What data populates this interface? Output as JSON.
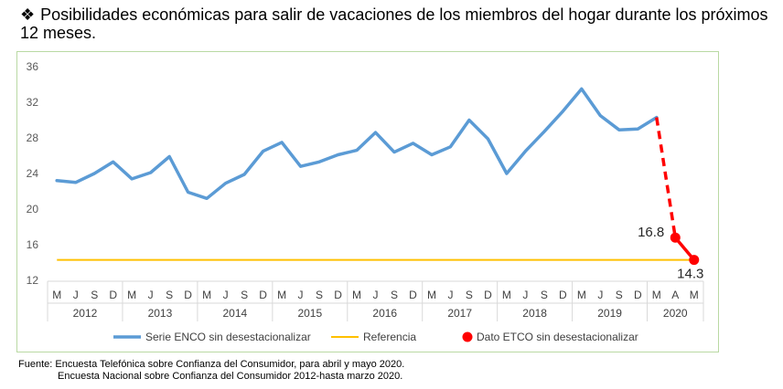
{
  "title_bullet": "❖",
  "title": "Posibilidades económicas para salir de vacaciones de los miembros del hogar durante los próximos 12 meses.",
  "chart_data": {
    "type": "line",
    "title": "Posibilidades económicas para salir de vacaciones de los miembros del hogar durante los próximos 12 meses.",
    "xlabel": "",
    "ylabel": "",
    "ylim": [
      12,
      36
    ],
    "yticks": [
      12,
      16,
      20,
      24,
      28,
      32,
      36
    ],
    "grid": false,
    "legend_position": "bottom",
    "month_labels": [
      "M",
      "J",
      "S",
      "D",
      "M",
      "J",
      "S",
      "D",
      "M",
      "J",
      "S",
      "D",
      "M",
      "J",
      "S",
      "D",
      "M",
      "J",
      "S",
      "D",
      "M",
      "J",
      "S",
      "D",
      "M",
      "J",
      "S",
      "D",
      "M",
      "J",
      "S",
      "D",
      "M",
      "A",
      "M"
    ],
    "year_labels": [
      "2012",
      "2013",
      "2014",
      "2015",
      "2016",
      "2017",
      "2018",
      "2019",
      "2020"
    ],
    "series": [
      {
        "name": "Serie ENCO sin desestacionalizar",
        "color": "#5b9bd5",
        "values": [
          23.2,
          23.0,
          24.0,
          25.3,
          23.4,
          24.1,
          25.9,
          21.9,
          21.2,
          22.9,
          23.9,
          26.5,
          27.5,
          24.8,
          25.3,
          26.1,
          26.6,
          28.6,
          26.4,
          27.4,
          26.1,
          27.0,
          30.0,
          27.9,
          24.0,
          26.5,
          28.7,
          31.0,
          33.5,
          30.5,
          28.9,
          29.0,
          30.3,
          null,
          null
        ]
      },
      {
        "name": "Referencia",
        "color": "#ffc000",
        "value": 14.3
      },
      {
        "name": "Dato ETCO sin desestacionalizar",
        "color": "#ff0000",
        "values": [
          null,
          null,
          null,
          null,
          null,
          null,
          null,
          null,
          null,
          null,
          null,
          null,
          null,
          null,
          null,
          null,
          null,
          null,
          null,
          null,
          null,
          null,
          null,
          null,
          null,
          null,
          null,
          null,
          null,
          null,
          null,
          null,
          null,
          16.8,
          14.3
        ]
      }
    ],
    "data_labels": [
      "16.8",
      "14.3"
    ]
  },
  "source": {
    "line1": "Fuente: Encuesta Telefónica sobre Confianza del Consumidor, para abril y mayo 2020.",
    "line2": "Encuesta Nacional sobre Confianza del Consumidor 2012-hasta marzo 2020."
  }
}
